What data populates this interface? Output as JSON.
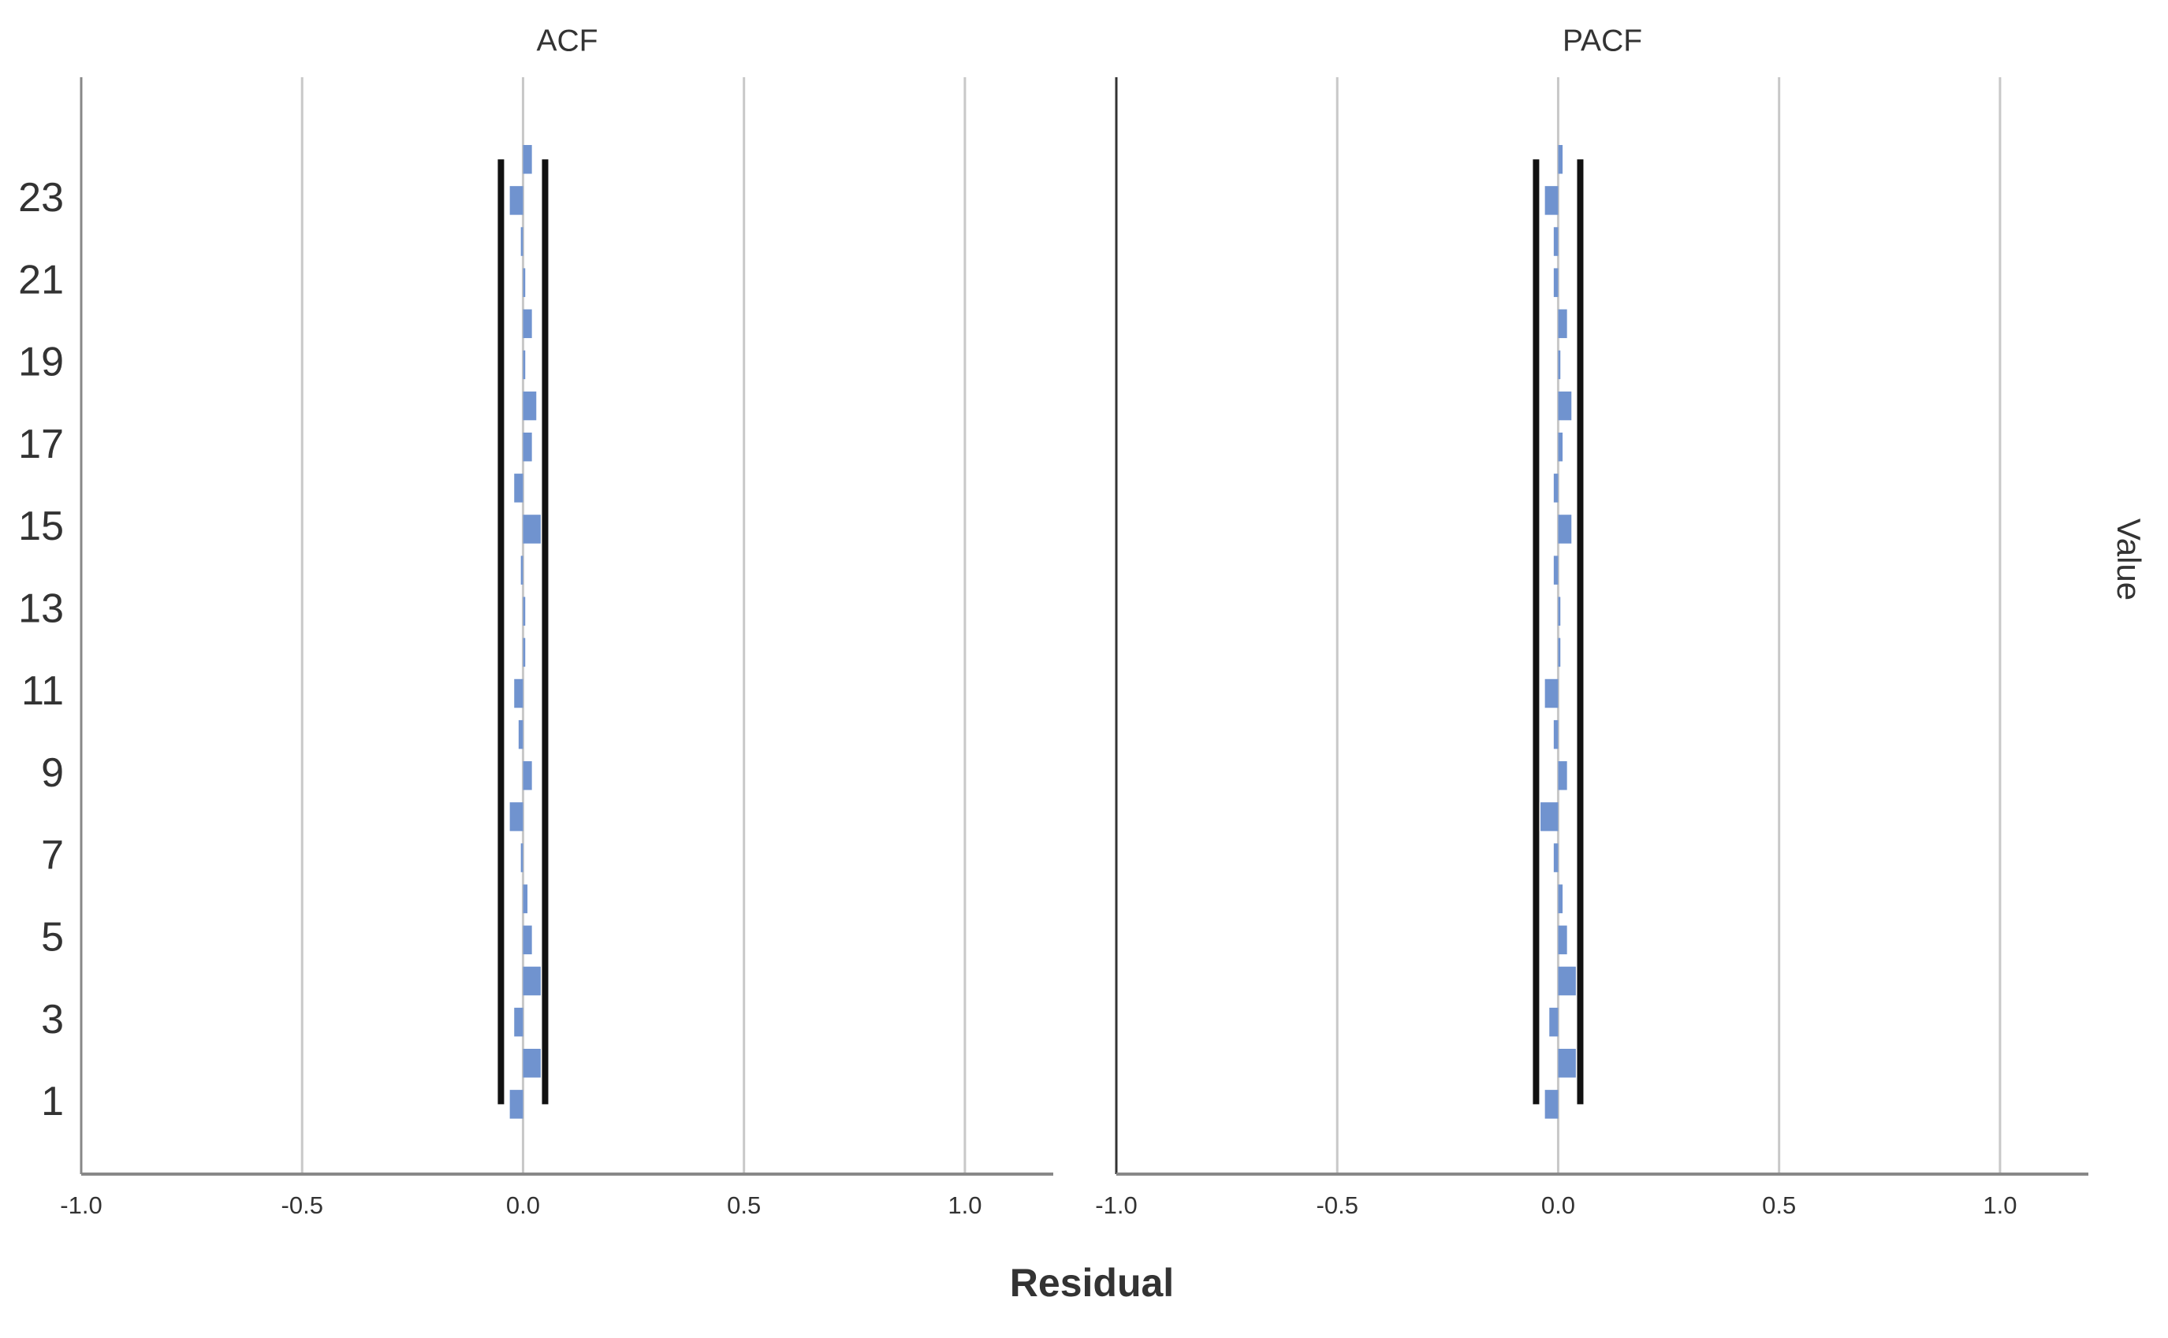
{
  "xlabel": "Residual",
  "ylabel": "Value",
  "chart_data": [
    {
      "type": "bar",
      "orientation": "horizontal",
      "title": "ACF",
      "y": [
        1,
        2,
        3,
        4,
        5,
        6,
        7,
        8,
        9,
        10,
        11,
        12,
        13,
        14,
        15,
        16,
        17,
        18,
        19,
        20,
        21,
        22,
        23,
        24
      ],
      "values": [
        -0.03,
        0.04,
        -0.02,
        0.04,
        0.02,
        0.01,
        -0.005,
        -0.03,
        0.02,
        -0.01,
        -0.02,
        0.005,
        0.005,
        -0.005,
        0.04,
        -0.02,
        0.02,
        0.03,
        0.005,
        0.02,
        0.005,
        -0.005,
        -0.03,
        0.02
      ],
      "color": "#7093cf",
      "confidence_limits": [
        -0.05,
        0.05
      ],
      "limit_color": "#111111",
      "xlim": [
        -1.0,
        1.2
      ],
      "xticks": [
        {
          "value": -1.0,
          "label": "-1.0"
        },
        {
          "value": -0.5,
          "label": "-0.5"
        },
        {
          "value": 0.0,
          "label": "0.0"
        },
        {
          "value": 0.5,
          "label": "0.5"
        },
        {
          "value": 1.0,
          "label": "1.0"
        }
      ],
      "ylim": [
        -0.7,
        26
      ],
      "yticks": [
        1,
        3,
        5,
        7,
        9,
        11,
        13,
        15,
        17,
        19,
        21,
        23
      ],
      "grid": true
    },
    {
      "type": "bar",
      "orientation": "horizontal",
      "title": "PACF",
      "y": [
        1,
        2,
        3,
        4,
        5,
        6,
        7,
        8,
        9,
        10,
        11,
        12,
        13,
        14,
        15,
        16,
        17,
        18,
        19,
        20,
        21,
        22,
        23,
        24
      ],
      "values": [
        -0.03,
        0.04,
        -0.02,
        0.04,
        0.02,
        0.01,
        -0.01,
        -0.04,
        0.02,
        -0.01,
        -0.03,
        0.005,
        0.005,
        -0.01,
        0.03,
        -0.01,
        0.01,
        0.03,
        0.005,
        0.02,
        -0.01,
        -0.01,
        -0.03,
        0.01
      ],
      "color": "#7093cf",
      "confidence_limits": [
        -0.05,
        0.05
      ],
      "limit_color": "#111111",
      "xlim": [
        -1.0,
        1.2
      ],
      "xticks": [
        {
          "value": -1.0,
          "label": "-1.0"
        },
        {
          "value": -0.5,
          "label": "-0.5"
        },
        {
          "value": 0.0,
          "label": "0.0"
        },
        {
          "value": 0.5,
          "label": "0.5"
        },
        {
          "value": 1.0,
          "label": "1.0"
        }
      ],
      "ylim": [
        -0.7,
        26
      ],
      "grid": true
    }
  ]
}
